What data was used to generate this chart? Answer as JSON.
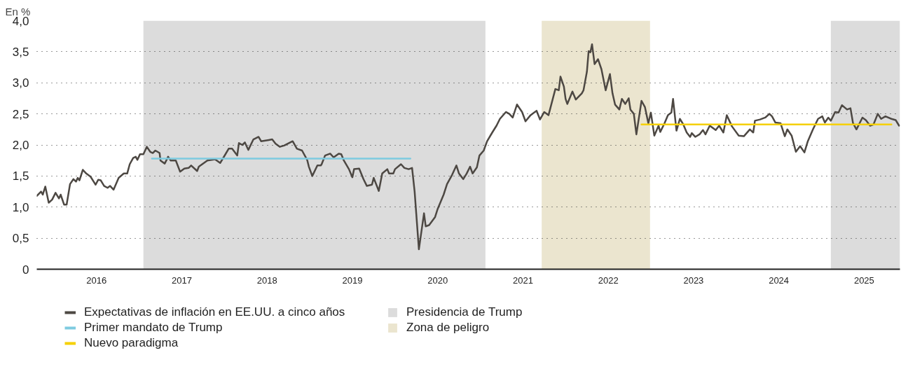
{
  "chart_data": {
    "type": "line",
    "ylabel": "En %",
    "xlim": [
      2015.8,
      2025.92
    ],
    "ylim": [
      0,
      4
    ],
    "xticks": [
      {
        "value": 2016.5,
        "label": "2016"
      },
      {
        "value": 2017.5,
        "label": "2017"
      },
      {
        "value": 2018.5,
        "label": "2018"
      },
      {
        "value": 2019.5,
        "label": "2019"
      },
      {
        "value": 2020.5,
        "label": "2020"
      },
      {
        "value": 2021.5,
        "label": "2021"
      },
      {
        "value": 2022.5,
        "label": "2022"
      },
      {
        "value": 2023.5,
        "label": "2023"
      },
      {
        "value": 2024.5,
        "label": "2024"
      },
      {
        "value": 2025.5,
        "label": "2025"
      }
    ],
    "yticks": [
      0,
      {
        "value": 0.5,
        "label": "0,5"
      },
      {
        "value": 1,
        "label": "1,0"
      },
      {
        "value": 1.5,
        "label": "1,5"
      },
      {
        "value": 2,
        "label": "2,0"
      },
      {
        "value": 2.5,
        "label": "2,5"
      },
      {
        "value": 3,
        "label": "3,0"
      },
      {
        "value": 3.5,
        "label": "3,5"
      },
      {
        "value": 4,
        "label": "4,0"
      }
    ],
    "grid": "y",
    "legend": "bottom",
    "line_style": "solid",
    "marker": "none",
    "bands": [
      {
        "axis": "x",
        "from": 2017.05,
        "to": 2021.06,
        "label": "Presidencia de Trump",
        "color": "#dcdcdc"
      },
      {
        "axis": "x",
        "from": 2021.72,
        "to": 2022.99,
        "label": "Zona de peligro",
        "color": "#ebe5cf"
      },
      {
        "axis": "x",
        "from": 2025.11,
        "to": 2025.92,
        "color": "#dcdcdc"
      }
    ],
    "series": [
      {
        "name": "Expectativas de inflación en EE.UU. a cinco años",
        "color": "#4d4843",
        "x": [
          2015.8,
          2015.85,
          2015.87,
          2015.9,
          2015.94,
          2015.98,
          2016.02,
          2016.06,
          2016.08,
          2016.12,
          2016.15,
          2016.19,
          2016.23,
          2016.26,
          2016.28,
          2016.3,
          2016.34,
          2016.38,
          2016.43,
          2016.49,
          2016.52,
          2016.55,
          2016.59,
          2016.63,
          2016.66,
          2016.7,
          2016.76,
          2016.82,
          2016.86,
          2016.89,
          2016.93,
          2016.96,
          2016.98,
          2017.01,
          2017.05,
          2017.09,
          2017.13,
          2017.16,
          2017.19,
          2017.24,
          2017.25,
          2017.3,
          2017.34,
          2017.37,
          2017.43,
          2017.48,
          2017.53,
          2017.58,
          2017.61,
          2017.68,
          2017.7,
          2017.72,
          2017.8,
          2017.89,
          2017.95,
          2017.99,
          2018.05,
          2018.09,
          2018.15,
          2018.17,
          2018.21,
          2018.24,
          2018.28,
          2018.34,
          2018.4,
          2018.43,
          2018.52,
          2018.56,
          2018.6,
          2018.65,
          2018.7,
          2018.8,
          2018.85,
          2018.91,
          2018.97,
          2018.99,
          2019.03,
          2019.09,
          2019.13,
          2019.14,
          2019.18,
          2019.24,
          2019.28,
          2019.34,
          2019.37,
          2019.4,
          2019.46,
          2019.5,
          2019.52,
          2019.58,
          2019.63,
          2019.67,
          2019.73,
          2019.75,
          2019.81,
          2019.85,
          2019.91,
          2019.93,
          2019.98,
          2020.0,
          2020.07,
          2020.11,
          2020.16,
          2020.2,
          2020.23,
          2020.28,
          2020.34,
          2020.36,
          2020.4,
          2020.47,
          2020.5,
          2020.57,
          2020.61,
          2020.67,
          2020.72,
          2020.75,
          2020.8,
          2020.84,
          2020.88,
          2020.91,
          2020.96,
          2020.99,
          2021.04,
          2021.08,
          2021.14,
          2021.19,
          2021.23,
          2021.3,
          2021.34,
          2021.38,
          2021.43,
          2021.49,
          2021.53,
          2021.59,
          2021.66,
          2021.7,
          2021.75,
          2021.8,
          2021.88,
          2021.92,
          2021.94,
          2021.98,
          2022.0,
          2022.02,
          2022.08,
          2022.12,
          2022.19,
          2022.21,
          2022.25,
          2022.27,
          2022.29,
          2022.31,
          2022.34,
          2022.38,
          2022.42,
          2022.47,
          2022.52,
          2022.55,
          2022.58,
          2022.63,
          2022.66,
          2022.7,
          2022.74,
          2022.76,
          2022.8,
          2022.83,
          2022.89,
          2022.93,
          2022.97,
          2023.0,
          2023.04,
          2023.09,
          2023.11,
          2023.16,
          2023.2,
          2023.24,
          2023.26,
          2023.3,
          2023.34,
          2023.38,
          2023.42,
          2023.46,
          2023.48,
          2023.52,
          2023.57,
          2023.61,
          2023.64,
          2023.69,
          2023.76,
          2023.8,
          2023.85,
          2023.89,
          2023.95,
          2024.03,
          2024.09,
          2024.16,
          2024.2,
          2024.22,
          2024.28,
          2024.34,
          2024.39,
          2024.42,
          2024.46,
          2024.52,
          2024.57,
          2024.6,
          2024.65,
          2024.7,
          2024.75,
          2024.8,
          2024.84,
          2024.9,
          2024.96,
          2025.01,
          2025.04,
          2025.08,
          2025.11,
          2025.16,
          2025.2,
          2025.24,
          2025.3,
          2025.34,
          2025.37,
          2025.41,
          2025.48,
          2025.52,
          2025.57,
          2025.61,
          2025.66,
          2025.7,
          2025.75,
          2025.82,
          2025.87,
          2025.91
        ],
        "values": [
          1.18,
          1.25,
          1.2,
          1.33,
          1.07,
          1.12,
          1.23,
          1.14,
          1.2,
          1.04,
          1.04,
          1.37,
          1.45,
          1.41,
          1.47,
          1.43,
          1.6,
          1.54,
          1.49,
          1.36,
          1.44,
          1.43,
          1.34,
          1.31,
          1.34,
          1.28,
          1.47,
          1.54,
          1.54,
          1.69,
          1.79,
          1.81,
          1.76,
          1.85,
          1.85,
          1.97,
          1.89,
          1.87,
          1.91,
          1.87,
          1.75,
          1.7,
          1.81,
          1.75,
          1.75,
          1.57,
          1.62,
          1.63,
          1.67,
          1.58,
          1.65,
          1.67,
          1.75,
          1.77,
          1.71,
          1.8,
          1.94,
          1.94,
          1.83,
          2.03,
          2.0,
          2.04,
          1.92,
          2.09,
          2.13,
          2.06,
          2.08,
          2.09,
          2.02,
          1.97,
          1.99,
          2.06,
          1.94,
          1.91,
          1.76,
          1.65,
          1.5,
          1.67,
          1.67,
          1.69,
          1.83,
          1.86,
          1.8,
          1.86,
          1.85,
          1.75,
          1.61,
          1.48,
          1.61,
          1.62,
          1.45,
          1.34,
          1.36,
          1.47,
          1.26,
          1.54,
          1.61,
          1.54,
          1.54,
          1.61,
          1.69,
          1.63,
          1.61,
          1.63,
          1.25,
          0.32,
          0.9,
          0.69,
          0.71,
          0.84,
          0.97,
          1.2,
          1.37,
          1.52,
          1.67,
          1.54,
          1.45,
          1.54,
          1.65,
          1.54,
          1.64,
          1.83,
          1.91,
          2.06,
          2.2,
          2.31,
          2.42,
          2.53,
          2.5,
          2.44,
          2.65,
          2.53,
          2.38,
          2.48,
          2.55,
          2.41,
          2.53,
          2.48,
          2.9,
          2.88,
          3.1,
          2.94,
          2.74,
          2.66,
          2.86,
          2.73,
          2.83,
          2.88,
          3.18,
          3.51,
          3.49,
          3.62,
          3.3,
          3.38,
          3.22,
          2.88,
          3.14,
          2.83,
          2.65,
          2.57,
          2.74,
          2.66,
          2.75,
          2.57,
          2.5,
          2.17,
          2.71,
          2.61,
          2.35,
          2.52,
          2.15,
          2.31,
          2.21,
          2.35,
          2.48,
          2.52,
          2.74,
          2.23,
          2.42,
          2.33,
          2.2,
          2.13,
          2.19,
          2.13,
          2.17,
          2.24,
          2.17,
          2.31,
          2.24,
          2.31,
          2.2,
          2.48,
          2.3,
          2.15,
          2.14,
          2.25,
          2.2,
          2.39,
          2.41,
          2.44,
          2.5,
          2.46,
          2.36,
          2.35,
          2.14,
          2.25,
          2.15,
          1.89,
          1.98,
          1.88,
          2.06,
          2.25,
          2.42,
          2.46,
          2.36,
          2.44,
          2.39,
          2.53,
          2.52,
          2.64,
          2.57,
          2.59,
          2.35,
          2.25,
          2.44,
          2.4,
          2.31,
          2.33,
          2.5,
          2.42,
          2.46,
          2.42,
          2.4,
          2.31
        ]
      },
      {
        "name": "Primer mandato de Trump",
        "color": "#7ecbe0",
        "x": [
          2017.15,
          2020.18
        ],
        "values": [
          1.78,
          1.78
        ]
      },
      {
        "name": "Nuevo paradigma",
        "color": "#f5d000",
        "x": [
          2022.89,
          2025.82
        ],
        "values": [
          2.33,
          2.33
        ]
      }
    ]
  }
}
